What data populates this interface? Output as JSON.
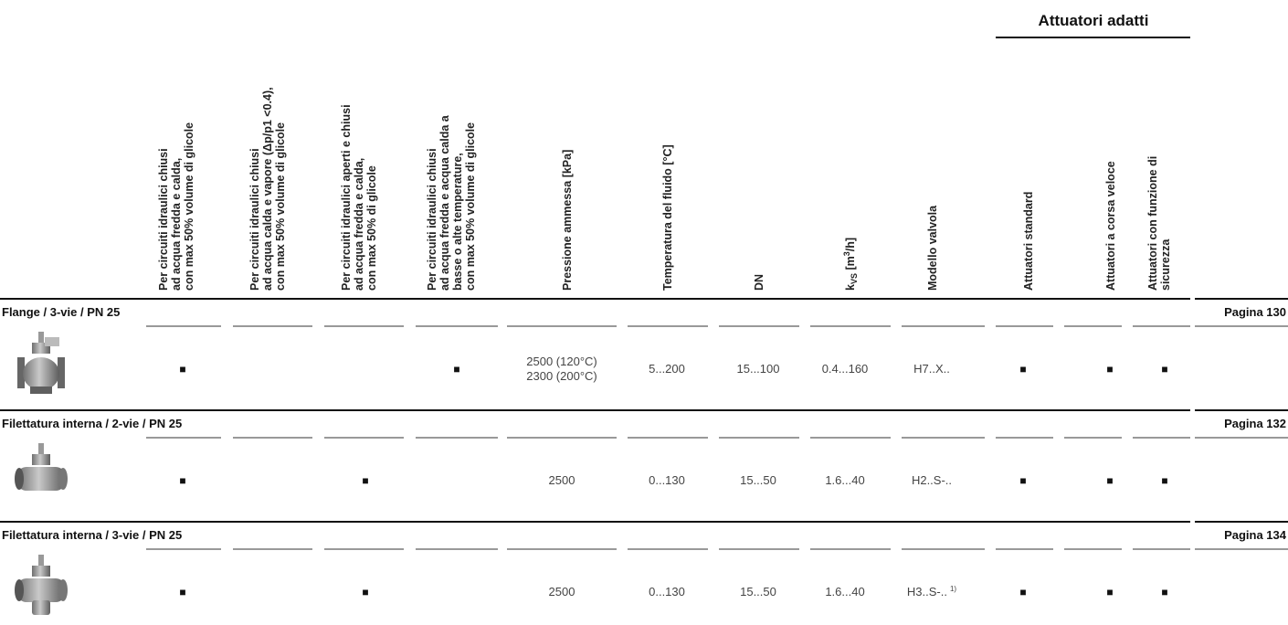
{
  "group_header": "Attuatori adatti",
  "columns": [
    {
      "lines": [
        "Per circuiti idraulici chiusi",
        "ad acqua fredda e calda,",
        "con max 50% volume di glicole"
      ]
    },
    {
      "lines": [
        "Per circuiti idraulici chiusi",
        "ad acqua calda e vapore (Δp/p1 <0.4),",
        "con max 50% volume di glicole"
      ]
    },
    {
      "lines": [
        "Per circuiti idraulici aperti e chiusi",
        "ad acqua fredda e calda,",
        "con max 50% di glicole"
      ]
    },
    {
      "lines": [
        "Per circuiti idraulici chiusi",
        "ad acqua fredda e acqua calda a",
        "basse o alte temperature,",
        "con max 50% volume di glicole"
      ]
    },
    {
      "lines": [
        "Pressione ammessa [kPa]"
      ]
    },
    {
      "lines": [
        "Temperatura del fluido [°C]"
      ]
    },
    {
      "lines": [
        "DN"
      ]
    },
    {
      "parts": {
        "main": "k",
        "sub": "VS",
        "pre": " [m",
        "sup": "3",
        "post": "/h]"
      }
    },
    {
      "lines": [
        "Modello valvola"
      ]
    },
    {
      "lines": [
        "Attuatori standard"
      ]
    },
    {
      "lines": [
        "Attuatori a corsa veloce"
      ]
    },
    {
      "lines": [
        "Attuatori con funzione di",
        "sicurezza"
      ]
    }
  ],
  "sections": [
    {
      "title": "Flange / 3-vie / PN 25",
      "page": "Pagina 130",
      "cells": [
        "■",
        null,
        null,
        "■",
        [
          "2500 (120°C)",
          "2300 (200°C)"
        ],
        "5...200",
        "15...100",
        "0.4...160",
        "H7..X..",
        "■",
        "■",
        "■"
      ]
    },
    {
      "title": "Filettatura interna / 2-vie / PN 25",
      "page": "Pagina 132",
      "cells": [
        "■",
        null,
        "■",
        null,
        "2500",
        "0...130",
        "15...50",
        "1.6...40",
        "H2..S-..",
        "■",
        "■",
        "■"
      ]
    },
    {
      "title": "Filettatura interna / 3-vie / PN 25",
      "page": "Pagina 134",
      "cells": [
        "■",
        null,
        "■",
        null,
        "2500",
        "0...130",
        "15...50",
        "1.6...40",
        "H3..S-..",
        "■",
        "■",
        "■"
      ],
      "model_note": "1)"
    }
  ]
}
